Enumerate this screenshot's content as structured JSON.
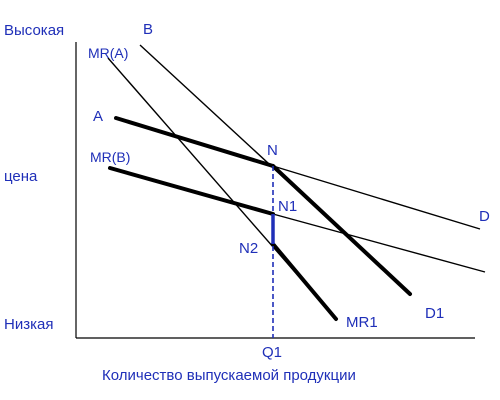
{
  "axes": {
    "y_top_label": "Высокая",
    "y_middle_label": "цена",
    "y_bottom_label": "Низкая",
    "x_label": "Количество выпускаемой продукции",
    "x_tick_label": "Q1"
  },
  "curves": {
    "b": "B",
    "mr_a": "MR(A)",
    "a": "A",
    "mr_b": "MR(B)",
    "d": "D",
    "d1": "D1",
    "mr1": "MR1"
  },
  "points": {
    "n": "N",
    "n1": "N1",
    "n2": "N2"
  },
  "colors": {
    "label": "#1f2fb8",
    "lines": "#000000",
    "dashed_guide": "#1f2fb8"
  }
}
